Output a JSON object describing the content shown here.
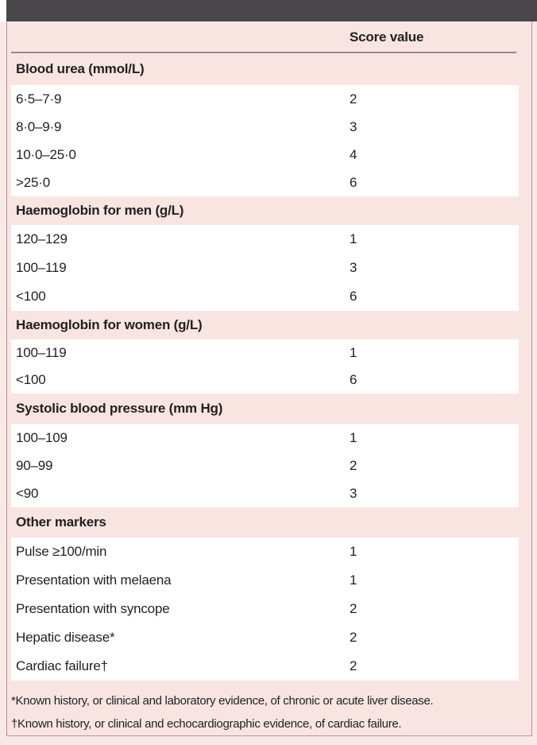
{
  "colors": {
    "top_bar": "#4a474a",
    "page_pink": "#f9e9e6",
    "panel_pink": "#f8e5e2",
    "row_white": "#ffffff",
    "border_rose": "#bf8d92",
    "rule_gray": "#8f8b8c",
    "text": "#221f20"
  },
  "table": {
    "score_column_header": "Score value",
    "sections": [
      {
        "header": "Blood urea (mmol/L)",
        "rows": [
          {
            "label": "6·5–7·9",
            "score": "2"
          },
          {
            "label": "8·0–9·9",
            "score": "3"
          },
          {
            "label": "10·0–25·0",
            "score": "4"
          },
          {
            "label": ">25·0",
            "score": "6"
          }
        ]
      },
      {
        "header": "Haemoglobin for men (g/L)",
        "rows": [
          {
            "label": "120–129",
            "score": "1"
          },
          {
            "label": "100–119",
            "score": "3"
          },
          {
            "label": "<100",
            "score": "6"
          }
        ]
      },
      {
        "header": "Haemoglobin for women (g/L)",
        "rows": [
          {
            "label": "100–119",
            "score": "1"
          },
          {
            "label": "<100",
            "score": "6"
          }
        ]
      },
      {
        "header": "Systolic blood pressure (mm Hg)",
        "rows": [
          {
            "label": "100–109",
            "score": "1"
          },
          {
            "label": "90–99",
            "score": "2"
          },
          {
            "label": "<90",
            "score": "3"
          }
        ]
      },
      {
        "header": "Other markers",
        "rows": [
          {
            "label": "Pulse ≥100/min",
            "score": "1"
          },
          {
            "label": "Presentation with melaena",
            "score": "1"
          },
          {
            "label": "Presentation with syncope",
            "score": "2"
          },
          {
            "label": "Hepatic disease*",
            "score": "2"
          },
          {
            "label": "Cardiac failure†",
            "score": "2"
          }
        ]
      }
    ],
    "footnotes": [
      "*Known history, or clinical and laboratory evidence, of chronic or acute liver disease.",
      "†Known history, or clinical and echocardiographic evidence, of cardiac failure."
    ]
  }
}
